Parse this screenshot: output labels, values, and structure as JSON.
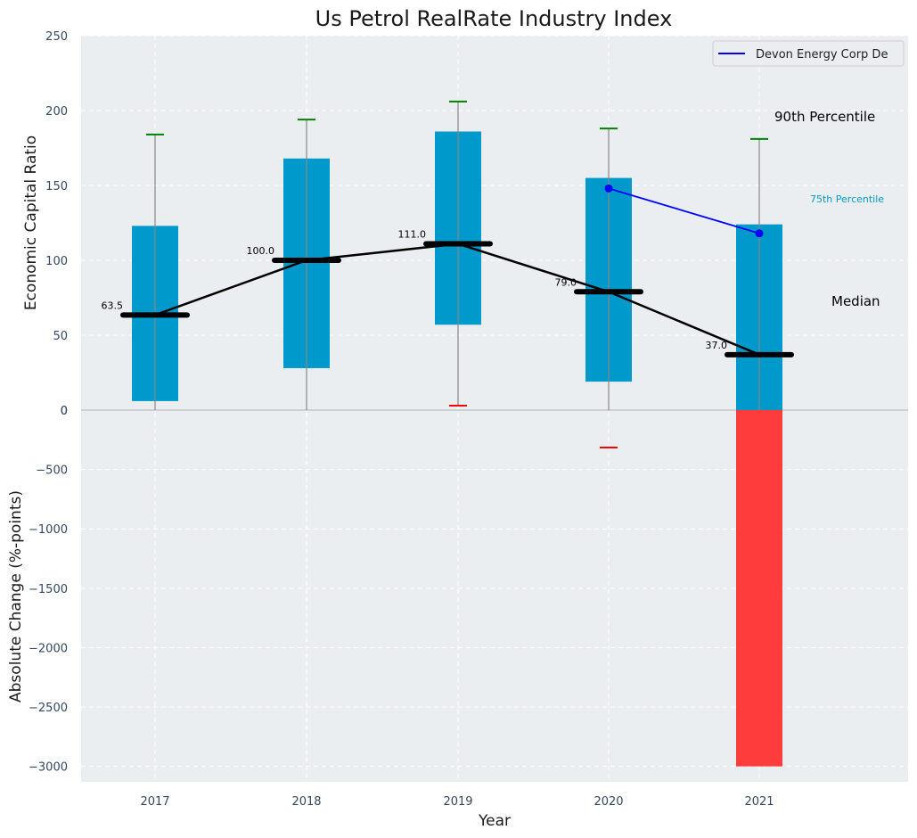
{
  "chart_data": [
    {
      "type": "box",
      "title": "Us Petrol RealRate Industry Index",
      "ylabel": "Economic Capital Ratio",
      "ylim": [
        0,
        250
      ],
      "yticks": [
        0,
        50,
        100,
        150,
        200,
        250
      ],
      "grid": true,
      "categories": [
        "2017",
        "2018",
        "2019",
        "2020",
        "2021"
      ],
      "p10": [
        0,
        0,
        3,
        -25,
        0
      ],
      "p25": [
        6,
        28,
        57,
        19,
        0
      ],
      "median": [
        63.5,
        100.0,
        111.0,
        79.0,
        37.0
      ],
      "median_labels": [
        "63.5",
        "100.0",
        "111.0",
        "79.0",
        "37.0"
      ],
      "p75": [
        123,
        168,
        186,
        155,
        124
      ],
      "p90": [
        184,
        194,
        206,
        188,
        181
      ],
      "series": [
        {
          "name": "Devon Energy Corp De",
          "x": [
            "2020",
            "2021"
          ],
          "values": [
            148,
            118
          ],
          "color": "#0000ff"
        }
      ],
      "legend": "top-right",
      "annotations": {
        "p90": "90th Percentile",
        "p75": "75th Percentile",
        "median": "Median"
      },
      "colors": {
        "box": "#0099cc",
        "median_line": "#000000",
        "p90_cap": "#008000",
        "p10_cap": "#ff0000",
        "whisker": "#888888",
        "background": "#eaeef0"
      }
    },
    {
      "type": "bar",
      "xlabel": "Year",
      "ylabel": "Absolute Change (%-points)",
      "categories": [
        "2017",
        "2018",
        "2019",
        "2020",
        "2021"
      ],
      "values": [
        0,
        0,
        0,
        0,
        -3000
      ],
      "ylim": [
        -3130,
        0
      ],
      "yticks": [
        -3000,
        -2500,
        -2000,
        -1500,
        -1000,
        -500,
        0
      ],
      "colors": {
        "negative": "#ff3c3c"
      }
    }
  ]
}
